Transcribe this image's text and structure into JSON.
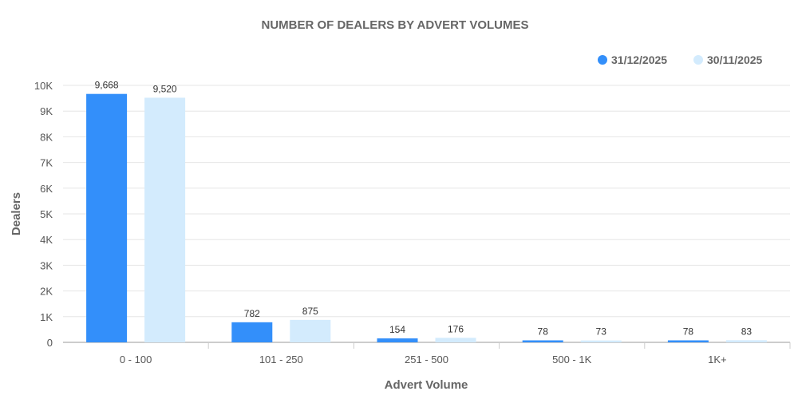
{
  "chart_data": {
    "type": "bar",
    "title": "NUMBER OF DEALERS BY ADVERT VOLUMES",
    "xlabel": "Advert Volume",
    "ylabel": "Dealers",
    "categories": [
      "0 - 100",
      "101 - 250",
      "251 - 500",
      "500 - 1K",
      "1K+"
    ],
    "series": [
      {
        "name": "31/12/2025",
        "color": "#338ffa",
        "values": [
          9668,
          782,
          154,
          78,
          78
        ],
        "labels": [
          "9,668",
          "782",
          "154",
          "78",
          "78"
        ]
      },
      {
        "name": "30/11/2025",
        "color": "#d3ebfd",
        "values": [
          9520,
          875,
          176,
          73,
          83
        ],
        "labels": [
          "9,520",
          "875",
          "176",
          "73",
          "83"
        ]
      }
    ],
    "ylim": [
      0,
      10000
    ],
    "yticks": [
      0,
      1000,
      2000,
      3000,
      4000,
      5000,
      6000,
      7000,
      8000,
      9000,
      10000
    ],
    "ytick_labels": [
      "0",
      "1K",
      "2K",
      "3K",
      "4K",
      "5K",
      "6K",
      "7K",
      "8K",
      "9K",
      "10K"
    ],
    "grid": true,
    "legend_position": "top-right"
  }
}
